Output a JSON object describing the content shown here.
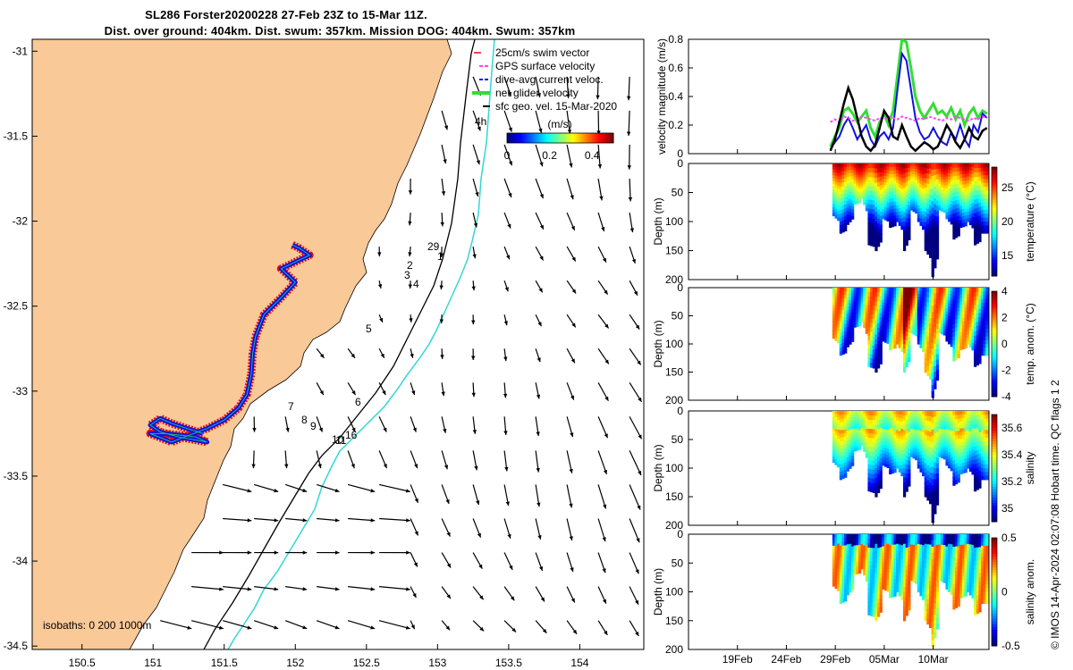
{
  "title_line1": "SL286 Forster20200228 27-Feb 23Z to 15-Mar 11Z.",
  "title_line2": "Dist. over ground: 404km. Dist. swum: 357km. Mission DOG: 404km. Swum: 357km",
  "credit": "© IMOS 14-Apr-2024 02:07:08 Hobart time. QC flags 1  2",
  "colors": {
    "land": "#f9c998",
    "track_red": "#e01010",
    "track_blue": "#1010e0",
    "isobath200": "#000000",
    "isobath1000": "#33d6d6"
  },
  "chart_data": [
    {
      "type": "map",
      "name": "track-map",
      "xticks": [
        "150.5",
        "151",
        "151.5",
        "152",
        "152.5",
        "153",
        "153.5",
        "154"
      ],
      "yticks": [
        "-31",
        "-31.5",
        "-32",
        "-32.5",
        "-33",
        "-33.5",
        "-34",
        "-34.5"
      ],
      "xlim": [
        150.15,
        154.45
      ],
      "ylim": [
        -34.52,
        -30.93
      ],
      "legend": [
        {
          "label": "25cm/s swim vector",
          "color": "#e01010",
          "style": "dots"
        },
        {
          "label": "GPS surface velocity",
          "color": "#ff44ff",
          "style": "dash"
        },
        {
          "label": "dive-avg current veloc.",
          "color": "#1010e0",
          "style": "dash"
        },
        {
          "label": "net glider velocity",
          "color": "#33dd33",
          "style": "thick"
        },
        {
          "label": "sfc geo. vel. 15-Mar-2020",
          "color": "#000000",
          "style": "solid"
        }
      ],
      "colorbar": {
        "title": "(m/s)",
        "ticks": [
          "0",
          "0.2",
          "0.4"
        ],
        "range": [
          0,
          0.5
        ]
      },
      "isobath_label": "isobaths: 0   200  1000m",
      "label_4h": "4h",
      "day_labels": [
        "29",
        "1",
        "2",
        "3",
        "4",
        "5",
        "6",
        "7",
        "8",
        "9",
        "10",
        "11",
        "16"
      ],
      "track": [
        [
          151.98,
          -32.14
        ],
        [
          152.03,
          -32.16
        ],
        [
          152.1,
          -32.2
        ],
        [
          152.0,
          -32.24
        ],
        [
          151.9,
          -32.28
        ],
        [
          151.95,
          -32.32
        ],
        [
          152.0,
          -32.36
        ],
        [
          151.9,
          -32.45
        ],
        [
          151.78,
          -32.55
        ],
        [
          151.72,
          -32.68
        ],
        [
          151.7,
          -32.78
        ],
        [
          151.69,
          -32.9
        ],
        [
          151.66,
          -33.02
        ],
        [
          151.6,
          -33.1
        ],
        [
          151.5,
          -33.17
        ],
        [
          151.38,
          -33.22
        ],
        [
          151.25,
          -33.26
        ],
        [
          151.13,
          -33.3
        ],
        [
          150.98,
          -33.25
        ],
        [
          151.08,
          -33.25
        ],
        [
          151.2,
          -33.26
        ],
        [
          151.3,
          -33.27
        ],
        [
          151.38,
          -33.3
        ],
        [
          151.18,
          -33.27
        ],
        [
          151.05,
          -33.24
        ],
        [
          150.98,
          -33.2
        ],
        [
          151.05,
          -33.16
        ],
        [
          151.13,
          -33.19
        ],
        [
          151.24,
          -33.22
        ],
        [
          151.35,
          -33.25
        ]
      ]
    },
    {
      "type": "line",
      "name": "velocity-magnitude",
      "ylabel": "velocity magnitude (m/s)",
      "ylim": [
        0,
        0.8
      ],
      "yticks": [
        "0",
        "0.2",
        "0.4",
        "0.6",
        "0.8"
      ],
      "series": [
        {
          "name": "net glider velocity",
          "color": "#33dd33",
          "values": [
            0.05,
            0.12,
            0.18,
            0.3,
            0.32,
            0.28,
            0.22,
            0.26,
            0.3,
            0.18,
            0.12,
            0.22,
            0.28,
            0.2,
            0.3,
            0.55,
            0.8,
            0.78,
            0.6,
            0.4,
            0.3,
            0.25,
            0.3,
            0.35,
            0.28,
            0.3,
            0.26,
            0.32,
            0.24,
            0.3,
            0.2,
            0.28,
            0.32,
            0.25,
            0.3,
            0.28
          ]
        },
        {
          "name": "dive-avg current",
          "color": "#1010e0",
          "values": [
            0.03,
            0.08,
            0.12,
            0.2,
            0.25,
            0.18,
            0.1,
            0.15,
            0.2,
            0.1,
            0.05,
            0.12,
            0.15,
            0.1,
            0.18,
            0.45,
            0.7,
            0.65,
            0.45,
            0.25,
            0.15,
            0.1,
            0.12,
            0.18,
            0.12,
            0.08,
            0.06,
            0.15,
            0.1,
            0.2,
            0.1,
            0.05,
            0.2,
            0.15,
            0.28,
            0.25
          ]
        },
        {
          "name": "GPS surface velocity",
          "color": "#ff44ff",
          "values": [
            0.22,
            0.24,
            0.22,
            0.26,
            0.25,
            0.23,
            0.24,
            0.26,
            0.25,
            0.24,
            0.23,
            0.25,
            0.24,
            0.26,
            0.25,
            0.24,
            0.26,
            0.25,
            0.24,
            0.23,
            0.25,
            0.24,
            0.26,
            0.25,
            0.24,
            0.23,
            0.25,
            0.24,
            0.26,
            0.25,
            0.24,
            0.23,
            0.25,
            0.24,
            0.26,
            0.25
          ]
        },
        {
          "name": "sfc geo. vel.",
          "color": "#000000",
          "values": [
            0.02,
            0.1,
            0.22,
            0.35,
            0.46,
            0.38,
            0.25,
            0.12,
            0.05,
            0.02,
            0.06,
            0.18,
            0.3,
            0.25,
            0.12,
            0.1,
            0.2,
            0.12,
            0.05,
            0.02,
            0.05,
            0.08,
            0.06,
            0.03,
            0.05,
            0.12,
            0.2,
            0.15,
            0.08,
            0.04,
            0.1,
            0.18,
            0.12,
            0.1,
            0.16,
            0.18
          ]
        }
      ]
    },
    {
      "type": "heatmap",
      "name": "temperature",
      "ylabel": "Depth (m)",
      "cbar_label": "temperature (°C)",
      "yticks": [
        "0",
        "50",
        "100",
        "150",
        "200"
      ],
      "cticks": [
        "15",
        "20",
        "25"
      ],
      "crange": [
        12,
        28
      ],
      "dive_depths": [
        90,
        120,
        105,
        70,
        60,
        140,
        150,
        95,
        110,
        100,
        150,
        80,
        100,
        150,
        195,
        80,
        95,
        130,
        110,
        100,
        140,
        120
      ]
    },
    {
      "type": "heatmap",
      "name": "temp-anomaly",
      "ylabel": "Depth (m)",
      "cbar_label": "temp. anom. (°C)",
      "yticks": [
        "0",
        "50",
        "100",
        "150",
        "200"
      ],
      "cticks": [
        "-4",
        "-2",
        "0",
        "2",
        "4"
      ],
      "crange": [
        -4,
        4
      ],
      "dive_depths": [
        90,
        120,
        105,
        70,
        60,
        140,
        150,
        95,
        110,
        100,
        150,
        80,
        100,
        150,
        195,
        80,
        95,
        130,
        110,
        100,
        140,
        120
      ]
    },
    {
      "type": "heatmap",
      "name": "salinity",
      "ylabel": "Depth (m)",
      "cbar_label": "salinity",
      "yticks": [
        "0",
        "50",
        "100",
        "150",
        "200"
      ],
      "cticks": [
        "35",
        "35.2",
        "35.4",
        "35.6"
      ],
      "crange": [
        34.9,
        35.7
      ],
      "dive_depths": [
        90,
        120,
        105,
        70,
        60,
        140,
        150,
        95,
        110,
        100,
        150,
        80,
        100,
        150,
        195,
        80,
        95,
        130,
        110,
        100,
        140,
        120
      ]
    },
    {
      "type": "heatmap",
      "name": "salinity-anomaly",
      "ylabel": "Depth (m)",
      "cbar_label": "salinity anom.",
      "yticks": [
        "0",
        "50",
        "100",
        "150",
        "200"
      ],
      "cticks": [
        "-0.5",
        "0",
        "0.5"
      ],
      "crange": [
        -0.5,
        0.5
      ],
      "dive_depths": [
        90,
        120,
        105,
        70,
        60,
        140,
        150,
        95,
        110,
        100,
        150,
        80,
        100,
        150,
        195,
        80,
        95,
        130,
        110,
        100,
        140,
        120
      ]
    }
  ],
  "time_axis": {
    "ticks": [
      "19Feb",
      "24Feb",
      "29Feb",
      "05Mar",
      "10Mar"
    ]
  }
}
